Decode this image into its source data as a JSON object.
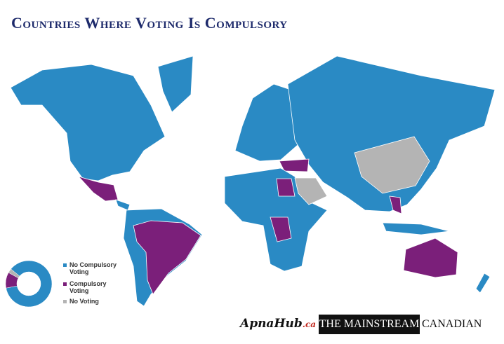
{
  "title": "Countries Where Voting Is Compulsory",
  "chart_data": {
    "type": "donut",
    "categories": [
      "No Compulsory Voting",
      "Compulsory Voting",
      "No Voting"
    ],
    "values": [
      86,
      11,
      3
    ],
    "colors": [
      "#2a8ac4",
      "#7b1f7a",
      "#b4b4b4"
    ]
  },
  "logos": {
    "apnahub": "ApnaHub",
    "apnahub_suffix": ".ca",
    "mainstream": "THE MAINSTREAM",
    "canadian": "CANADIAN"
  }
}
